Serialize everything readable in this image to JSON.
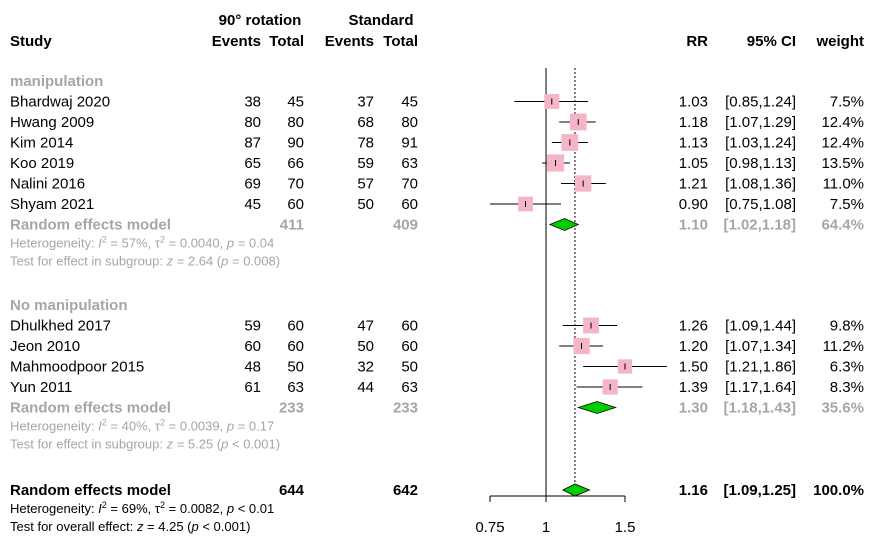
{
  "header": {
    "group1": "90° rotation",
    "group2": "Standard",
    "study": "Study",
    "events": "Events",
    "total": "Total",
    "rr": "RR",
    "ci": "95% CI",
    "weight": "weight"
  },
  "chart_data": {
    "type": "forest",
    "xscale": "log",
    "xlim": [
      0.75,
      1.5
    ],
    "ticks": [
      "0.75",
      "1",
      "1.5"
    ],
    "tick_values": [
      0.75,
      1,
      1.5
    ],
    "null_line": 1,
    "overall_line": 1.16,
    "colors": {
      "box": "#f4b6c6",
      "diamond": "#00cc00",
      "grey_text": "#a6a6a6"
    },
    "subgroups": [
      {
        "name": "manipulation",
        "studies": [
          {
            "study": "Bhardwaj 2020",
            "e1": "38",
            "n1": "45",
            "e2": "37",
            "n2": "45",
            "rr": 1.03,
            "lo": 0.85,
            "hi": 1.24,
            "w": 7.5,
            "rr_text": "1.03",
            "ci_text": "[0.85,1.24]",
            "w_text": "7.5%"
          },
          {
            "study": "Hwang 2009",
            "e1": "80",
            "n1": "80",
            "e2": "68",
            "n2": "80",
            "rr": 1.18,
            "lo": 1.07,
            "hi": 1.29,
            "w": 12.4,
            "rr_text": "1.18",
            "ci_text": "[1.07,1.29]",
            "w_text": "12.4%"
          },
          {
            "study": "Kim 2014",
            "e1": "87",
            "n1": "90",
            "e2": "78",
            "n2": "91",
            "rr": 1.13,
            "lo": 1.03,
            "hi": 1.24,
            "w": 12.4,
            "rr_text": "1.13",
            "ci_text": "[1.03,1.24]",
            "w_text": "12.4%"
          },
          {
            "study": "Koo 2019",
            "e1": "65",
            "n1": "66",
            "e2": "59",
            "n2": "63",
            "rr": 1.05,
            "lo": 0.98,
            "hi": 1.13,
            "w": 13.5,
            "rr_text": "1.05",
            "ci_text": "[0.98,1.13]",
            "w_text": "13.5%"
          },
          {
            "study": "Nalini 2016",
            "e1": "69",
            "n1": "70",
            "e2": "57",
            "n2": "70",
            "rr": 1.21,
            "lo": 1.08,
            "hi": 1.36,
            "w": 11.0,
            "rr_text": "1.21",
            "ci_text": "[1.08,1.36]",
            "w_text": "11.0%"
          },
          {
            "study": "Shyam 2021",
            "e1": "45",
            "n1": "60",
            "e2": "50",
            "n2": "60",
            "rr": 0.9,
            "lo": 0.75,
            "hi": 1.08,
            "w": 7.5,
            "rr_text": "0.90",
            "ci_text": "[0.75,1.08]",
            "w_text": "7.5%"
          }
        ],
        "model": {
          "label": "Random effects model",
          "n1": "411",
          "n2": "409",
          "rr": 1.1,
          "lo": 1.02,
          "hi": 1.18,
          "rr_text": "1.10",
          "ci_text": "[1.02,1.18]",
          "w_text": "64.4%"
        },
        "het_prefix": "Heterogeneity: ",
        "het_i2": "I",
        "het_sup": "2",
        "het_mid": " = 57%, τ",
        "het_sup2": "2",
        "het_rest": " = 0.0040, ",
        "het_p": "p",
        "het_pval": " = 0.04",
        "test_prefix": "Test for effect in subgroup: ",
        "test_z": "z",
        "test_zval": " = 2.64 (",
        "test_p": "p",
        "test_pval": " = 0.008)"
      },
      {
        "name": "No manipulation",
        "studies": [
          {
            "study": "Dhulkhed 2017",
            "e1": "59",
            "n1": "60",
            "e2": "47",
            "n2": "60",
            "rr": 1.26,
            "lo": 1.09,
            "hi": 1.44,
            "w": 9.8,
            "rr_text": "1.26",
            "ci_text": "[1.09,1.44]",
            "w_text": "9.8%"
          },
          {
            "study": "Jeon 2010",
            "e1": "60",
            "n1": "60",
            "e2": "50",
            "n2": "60",
            "rr": 1.2,
            "lo": 1.07,
            "hi": 1.34,
            "w": 11.2,
            "rr_text": "1.20",
            "ci_text": "[1.07,1.34]",
            "w_text": "11.2%"
          },
          {
            "study": "Mahmoodpoor 2015",
            "e1": "48",
            "n1": "50",
            "e2": "32",
            "n2": "50",
            "rr": 1.5,
            "lo": 1.21,
            "hi": 1.86,
            "w": 6.3,
            "rr_text": "1.50",
            "ci_text": "[1.21,1.86]",
            "w_text": "6.3%"
          },
          {
            "study": "Yun 2011",
            "e1": "61",
            "n1": "63",
            "e2": "44",
            "n2": "63",
            "rr": 1.39,
            "lo": 1.17,
            "hi": 1.64,
            "w": 8.3,
            "rr_text": "1.39",
            "ci_text": "[1.17,1.64]",
            "w_text": "8.3%"
          }
        ],
        "model": {
          "label": "Random effects model",
          "n1": "233",
          "n2": "233",
          "rr": 1.3,
          "lo": 1.18,
          "hi": 1.43,
          "rr_text": "1.30",
          "ci_text": "[1.18,1.43]",
          "w_text": "35.6%"
        },
        "het_prefix": "Heterogeneity: ",
        "het_i2": "I",
        "het_sup": "2",
        "het_mid": " = 40%, τ",
        "het_sup2": "2",
        "het_rest": " = 0.0039, ",
        "het_p": "p",
        "het_pval": " = 0.17",
        "test_prefix": "Test for effect in subgroup: ",
        "test_z": "z",
        "test_zval": " = 5.25 (",
        "test_p": "p",
        "test_pval": " < 0.001)"
      }
    ],
    "overall": {
      "label": "Random effects model",
      "n1": "644",
      "n2": "642",
      "rr": 1.16,
      "lo": 1.09,
      "hi": 1.25,
      "rr_text": "1.16",
      "ci_text": "[1.09,1.25]",
      "w_text": "100.0%",
      "het_prefix": "Heterogeneity: ",
      "het_i2": "I",
      "het_sup": "2",
      "het_mid": " = 69%, τ",
      "het_sup2": "2",
      "het_rest": " = 0.0082, ",
      "het_p": "p",
      "het_pval": " < 0.01",
      "test_prefix": "Test for overall effect: ",
      "test_z": "z",
      "test_zval": " = 4.25 (",
      "test_p": "p",
      "test_pval": " < 0.001)"
    }
  }
}
